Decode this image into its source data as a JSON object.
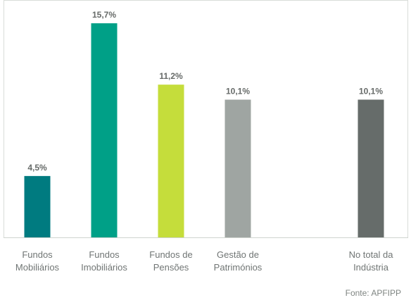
{
  "chart_data": {
    "type": "bar",
    "categories": [
      [
        "Fundos",
        "Mobiliários"
      ],
      [
        "Fundos",
        "Imobiliários"
      ],
      [
        "Fundos de",
        "Pensões"
      ],
      [
        "Gestão de",
        "Patrimónios"
      ],
      [
        "No total da",
        "Indústria"
      ]
    ],
    "values": [
      4.5,
      15.7,
      11.2,
      10.1,
      10.1
    ],
    "value_labels": [
      "4,5%",
      "15,7%",
      "11,2%",
      "10,1%",
      "10,1%"
    ],
    "colors": [
      "#007b80",
      "#00a087",
      "#c5dd3b",
      "#9fa5a2",
      "#666c6a"
    ],
    "ylim": [
      0,
      16
    ],
    "grid": false,
    "title": "",
    "xlabel": "",
    "ylabel": ""
  },
  "source": "Fonte: APFIPP"
}
